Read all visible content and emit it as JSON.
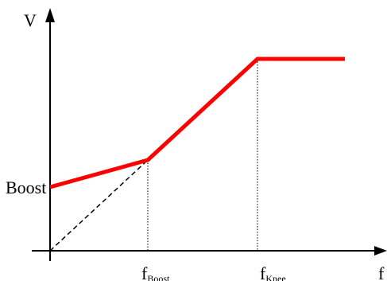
{
  "diagram": {
    "y_axis_label": "V",
    "x_axis_label": "f",
    "boost_label": "Boost",
    "f_boost_label": {
      "main": "f",
      "sub": "Boost"
    },
    "f_knee_label": {
      "main": "f",
      "sub": "Knee"
    },
    "curve_color": "#ff0000",
    "axis_color": "#000000",
    "reference_line_style": "dashed",
    "guide_line_style": "dotted"
  }
}
